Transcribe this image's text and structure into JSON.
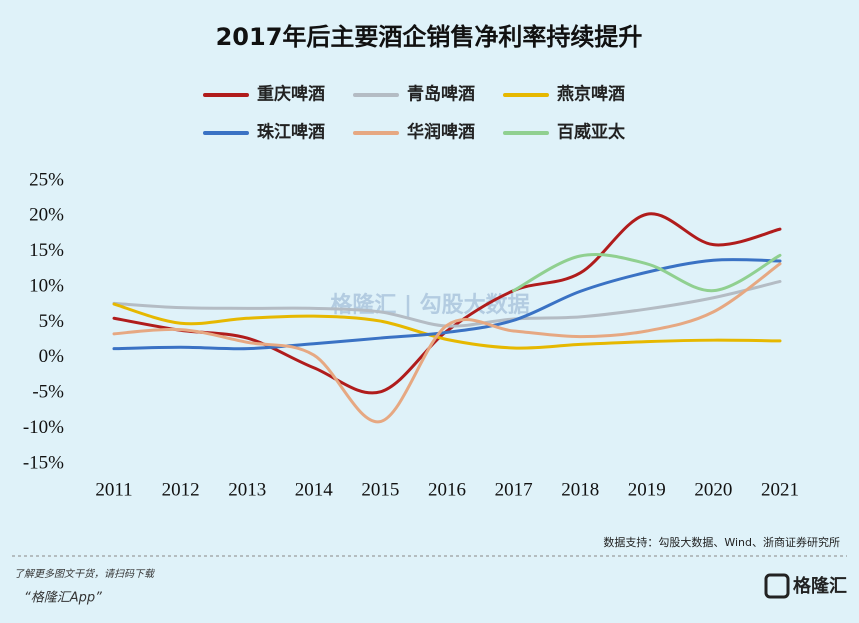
{
  "chart_data": {
    "type": "line",
    "title": "2017年后主要酒企销售净利率持续提升",
    "categories": [
      "2011",
      "2012",
      "2013",
      "2014",
      "2015",
      "2016",
      "2017",
      "2018",
      "2019",
      "2020",
      "2021"
    ],
    "series": [
      {
        "name": "重庆啤酒",
        "color": "#b01c1c",
        "values": [
          5.6,
          3.9,
          2.8,
          -1.4,
          -4.8,
          3.8,
          9.5,
          12,
          20.3,
          16,
          18.2
        ]
      },
      {
        "name": "青岛啤酒",
        "color": "#b4bcc4",
        "values": [
          7.7,
          7.1,
          7.0,
          7.0,
          6.5,
          4.5,
          5.5,
          5.8,
          6.9,
          8.5,
          10.8
        ]
      },
      {
        "name": "燕京啤酒",
        "color": "#e6b800",
        "values": [
          7.6,
          4.9,
          5.6,
          5.9,
          5.2,
          2.6,
          1.4,
          1.9,
          2.3,
          2.5,
          2.4
        ]
      },
      {
        "name": "珠江啤酒",
        "color": "#3a72c4",
        "values": [
          1.3,
          1.5,
          1.3,
          2.0,
          2.8,
          3.6,
          5.3,
          9.4,
          12.1,
          13.8,
          13.7
        ]
      },
      {
        "name": "华润啤酒",
        "color": "#e6a882",
        "values": [
          3.4,
          4.0,
          2.2,
          0.4,
          -9.0,
          4.6,
          3.8,
          3.0,
          3.8,
          6.5,
          13.3
        ]
      },
      {
        "name": "百威亚太",
        "color": "#90d090",
        "values": [
          null,
          null,
          null,
          null,
          null,
          null,
          9.5,
          14.4,
          13.3,
          9.5,
          14.5
        ]
      }
    ],
    "ylim": [
      -15,
      25
    ],
    "yticks": [
      {
        "value": -15,
        "label": "-15%"
      },
      {
        "value": -10,
        "label": "-10%"
      },
      {
        "value": -5,
        "label": "-5%"
      },
      {
        "value": 0,
        "label": "0%"
      },
      {
        "value": 5,
        "label": "5%"
      },
      {
        "value": 10,
        "label": "10%"
      },
      {
        "value": 15,
        "label": "15%"
      },
      {
        "value": 20,
        "label": "20%"
      },
      {
        "value": 25,
        "label": "25%"
      }
    ],
    "watermark": "格隆汇 | 勾股大数据",
    "source": "数据支持：勾股大数据、Wind、浙商证券研究所"
  },
  "footer": {
    "note": "了解更多图文干货，请扫码下载",
    "app": "“格隆汇App”",
    "logo": "格隆汇"
  }
}
